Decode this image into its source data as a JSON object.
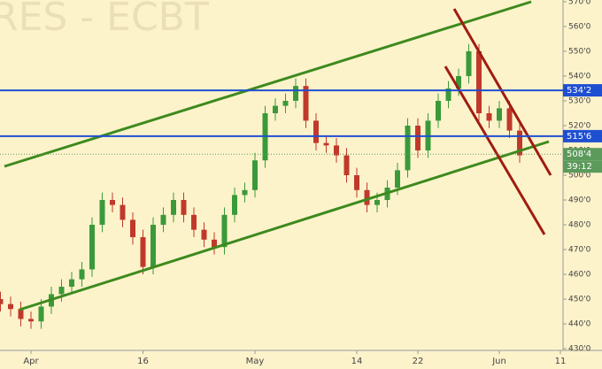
{
  "chart_data": {
    "type": "candlestick",
    "watermark": "RES - ECBT",
    "categories": [
      null,
      null,
      null,
      "Apr",
      null,
      null,
      null,
      null,
      null,
      null,
      null,
      null,
      null,
      null,
      "16",
      null,
      null,
      null,
      null,
      null,
      null,
      null,
      null,
      null,
      null,
      "May",
      null,
      null,
      null,
      null,
      null,
      null,
      null,
      null,
      null,
      "14",
      null,
      null,
      null,
      null,
      null,
      "22",
      null,
      null,
      null,
      null,
      null,
      null,
      null,
      "Jun",
      null,
      null,
      null,
      null,
      null,
      "11"
    ],
    "open": [
      450,
      448,
      446,
      442,
      441,
      447,
      452,
      455,
      458,
      462,
      480,
      490,
      488,
      482,
      475,
      463,
      480,
      484,
      490,
      484,
      478,
      474,
      471,
      484,
      492,
      494,
      506,
      525,
      528,
      530,
      536,
      522,
      513,
      512,
      508,
      500,
      494,
      488,
      490,
      495,
      502,
      520,
      510,
      522,
      530,
      535,
      540,
      550,
      525,
      522,
      527,
      518,
      null,
      null,
      null,
      null
    ],
    "high": [
      453,
      451,
      449,
      445,
      450,
      455,
      458,
      461,
      465,
      483,
      493,
      493,
      491,
      485,
      478,
      483,
      487,
      493,
      493,
      487,
      481,
      477,
      487,
      495,
      497,
      509,
      528,
      531,
      533,
      539,
      539,
      525,
      516,
      515,
      511,
      503,
      497,
      493,
      498,
      505,
      523,
      523,
      525,
      533,
      538,
      543,
      553,
      553,
      528,
      530,
      530,
      521,
      null,
      null,
      null,
      null
    ],
    "low": [
      445,
      443,
      439,
      438,
      438,
      444,
      449,
      452,
      455,
      459,
      477,
      485,
      479,
      472,
      460,
      460,
      477,
      481,
      481,
      475,
      471,
      468,
      468,
      481,
      489,
      491,
      503,
      522,
      525,
      527,
      519,
      510,
      509,
      505,
      497,
      491,
      485,
      485,
      487,
      492,
      499,
      507,
      507,
      519,
      527,
      532,
      537,
      522,
      519,
      519,
      515,
      505,
      null,
      null,
      null,
      null
    ],
    "close": [
      448,
      446,
      442,
      441,
      447,
      452,
      455,
      458,
      462,
      480,
      490,
      488,
      482,
      475,
      463,
      480,
      484,
      490,
      484,
      478,
      474,
      471,
      484,
      492,
      494,
      506,
      525,
      528,
      530,
      536,
      522,
      513,
      512,
      508,
      500,
      494,
      488,
      490,
      495,
      502,
      520,
      510,
      522,
      530,
      535,
      540,
      550,
      525,
      522,
      527,
      518,
      508,
      null,
      null,
      null,
      null
    ],
    "up_color": "#3a9a3a",
    "down_color": "#c0392b",
    "ylim": [
      429.3,
      570.7
    ],
    "yticks": [
      {
        "value": 430,
        "label": "430'0"
      },
      {
        "value": 440,
        "label": "440'0"
      },
      {
        "value": 450,
        "label": "450'0"
      },
      {
        "value": 460,
        "label": "460'0"
      },
      {
        "value": 470,
        "label": "470'0"
      },
      {
        "value": 480,
        "label": "480'0"
      },
      {
        "value": 490,
        "label": "490'0"
      },
      {
        "value": 500,
        "label": "500'0"
      },
      {
        "value": 510,
        "label": "510'0"
      },
      {
        "value": 520,
        "label": "520'0"
      },
      {
        "value": 530,
        "label": "530'0"
      },
      {
        "value": 540,
        "label": "540'0"
      },
      {
        "value": 550,
        "label": "550'0"
      },
      {
        "value": 560,
        "label": "560'0"
      },
      {
        "value": 570,
        "label": "570'0"
      }
    ],
    "price_levels": [
      {
        "value": 534.25,
        "label": "534'2",
        "color": "#1f4fd1",
        "style": "solid"
      },
      {
        "value": 515.75,
        "label": "515'6",
        "color": "#1f4fd1",
        "style": "solid"
      },
      {
        "value": 508.5,
        "label": "508'4",
        "color": "#5c9a5c",
        "style": "dotted"
      }
    ],
    "timer": "39:12"
  }
}
